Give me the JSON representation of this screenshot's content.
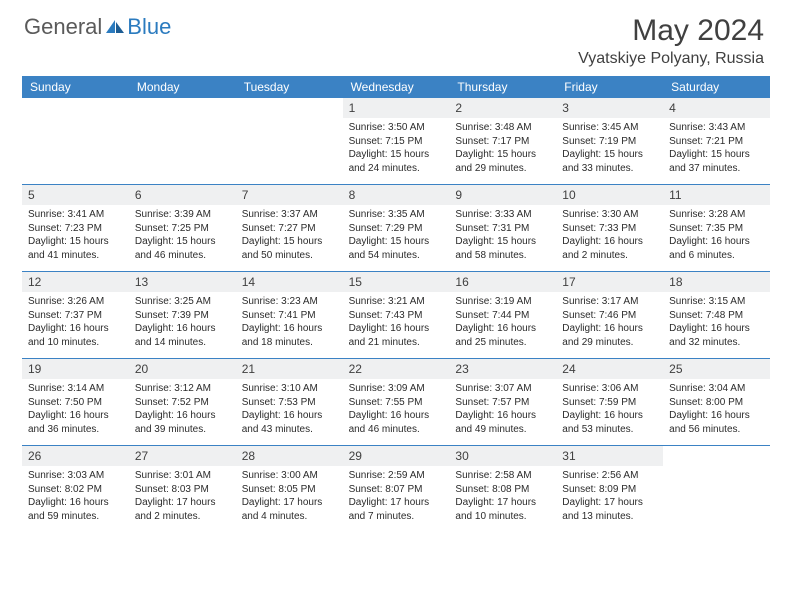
{
  "brand": {
    "part1": "General",
    "part2": "Blue"
  },
  "title": "May 2024",
  "location": "Vyatskiye Polyany, Russia",
  "colors": {
    "header_bar": "#3b82c4",
    "daynum_bg": "#eff0f1",
    "text": "#404040",
    "brand_gray": "#5a5a5a",
    "brand_blue": "#2b7bbf"
  },
  "dow": [
    "Sunday",
    "Monday",
    "Tuesday",
    "Wednesday",
    "Thursday",
    "Friday",
    "Saturday"
  ],
  "weeks": [
    [
      {
        "n": "",
        "sr": "",
        "ss": "",
        "dl": "",
        "empty": true
      },
      {
        "n": "",
        "sr": "",
        "ss": "",
        "dl": "",
        "empty": true
      },
      {
        "n": "",
        "sr": "",
        "ss": "",
        "dl": "",
        "empty": true
      },
      {
        "n": "1",
        "sr": "Sunrise: 3:50 AM",
        "ss": "Sunset: 7:15 PM",
        "dl": "Daylight: 15 hours and 24 minutes."
      },
      {
        "n": "2",
        "sr": "Sunrise: 3:48 AM",
        "ss": "Sunset: 7:17 PM",
        "dl": "Daylight: 15 hours and 29 minutes."
      },
      {
        "n": "3",
        "sr": "Sunrise: 3:45 AM",
        "ss": "Sunset: 7:19 PM",
        "dl": "Daylight: 15 hours and 33 minutes."
      },
      {
        "n": "4",
        "sr": "Sunrise: 3:43 AM",
        "ss": "Sunset: 7:21 PM",
        "dl": "Daylight: 15 hours and 37 minutes."
      }
    ],
    [
      {
        "n": "5",
        "sr": "Sunrise: 3:41 AM",
        "ss": "Sunset: 7:23 PM",
        "dl": "Daylight: 15 hours and 41 minutes."
      },
      {
        "n": "6",
        "sr": "Sunrise: 3:39 AM",
        "ss": "Sunset: 7:25 PM",
        "dl": "Daylight: 15 hours and 46 minutes."
      },
      {
        "n": "7",
        "sr": "Sunrise: 3:37 AM",
        "ss": "Sunset: 7:27 PM",
        "dl": "Daylight: 15 hours and 50 minutes."
      },
      {
        "n": "8",
        "sr": "Sunrise: 3:35 AM",
        "ss": "Sunset: 7:29 PM",
        "dl": "Daylight: 15 hours and 54 minutes."
      },
      {
        "n": "9",
        "sr": "Sunrise: 3:33 AM",
        "ss": "Sunset: 7:31 PM",
        "dl": "Daylight: 15 hours and 58 minutes."
      },
      {
        "n": "10",
        "sr": "Sunrise: 3:30 AM",
        "ss": "Sunset: 7:33 PM",
        "dl": "Daylight: 16 hours and 2 minutes."
      },
      {
        "n": "11",
        "sr": "Sunrise: 3:28 AM",
        "ss": "Sunset: 7:35 PM",
        "dl": "Daylight: 16 hours and 6 minutes."
      }
    ],
    [
      {
        "n": "12",
        "sr": "Sunrise: 3:26 AM",
        "ss": "Sunset: 7:37 PM",
        "dl": "Daylight: 16 hours and 10 minutes."
      },
      {
        "n": "13",
        "sr": "Sunrise: 3:25 AM",
        "ss": "Sunset: 7:39 PM",
        "dl": "Daylight: 16 hours and 14 minutes."
      },
      {
        "n": "14",
        "sr": "Sunrise: 3:23 AM",
        "ss": "Sunset: 7:41 PM",
        "dl": "Daylight: 16 hours and 18 minutes."
      },
      {
        "n": "15",
        "sr": "Sunrise: 3:21 AM",
        "ss": "Sunset: 7:43 PM",
        "dl": "Daylight: 16 hours and 21 minutes."
      },
      {
        "n": "16",
        "sr": "Sunrise: 3:19 AM",
        "ss": "Sunset: 7:44 PM",
        "dl": "Daylight: 16 hours and 25 minutes."
      },
      {
        "n": "17",
        "sr": "Sunrise: 3:17 AM",
        "ss": "Sunset: 7:46 PM",
        "dl": "Daylight: 16 hours and 29 minutes."
      },
      {
        "n": "18",
        "sr": "Sunrise: 3:15 AM",
        "ss": "Sunset: 7:48 PM",
        "dl": "Daylight: 16 hours and 32 minutes."
      }
    ],
    [
      {
        "n": "19",
        "sr": "Sunrise: 3:14 AM",
        "ss": "Sunset: 7:50 PM",
        "dl": "Daylight: 16 hours and 36 minutes."
      },
      {
        "n": "20",
        "sr": "Sunrise: 3:12 AM",
        "ss": "Sunset: 7:52 PM",
        "dl": "Daylight: 16 hours and 39 minutes."
      },
      {
        "n": "21",
        "sr": "Sunrise: 3:10 AM",
        "ss": "Sunset: 7:53 PM",
        "dl": "Daylight: 16 hours and 43 minutes."
      },
      {
        "n": "22",
        "sr": "Sunrise: 3:09 AM",
        "ss": "Sunset: 7:55 PM",
        "dl": "Daylight: 16 hours and 46 minutes."
      },
      {
        "n": "23",
        "sr": "Sunrise: 3:07 AM",
        "ss": "Sunset: 7:57 PM",
        "dl": "Daylight: 16 hours and 49 minutes."
      },
      {
        "n": "24",
        "sr": "Sunrise: 3:06 AM",
        "ss": "Sunset: 7:59 PM",
        "dl": "Daylight: 16 hours and 53 minutes."
      },
      {
        "n": "25",
        "sr": "Sunrise: 3:04 AM",
        "ss": "Sunset: 8:00 PM",
        "dl": "Daylight: 16 hours and 56 minutes."
      }
    ],
    [
      {
        "n": "26",
        "sr": "Sunrise: 3:03 AM",
        "ss": "Sunset: 8:02 PM",
        "dl": "Daylight: 16 hours and 59 minutes."
      },
      {
        "n": "27",
        "sr": "Sunrise: 3:01 AM",
        "ss": "Sunset: 8:03 PM",
        "dl": "Daylight: 17 hours and 2 minutes."
      },
      {
        "n": "28",
        "sr": "Sunrise: 3:00 AM",
        "ss": "Sunset: 8:05 PM",
        "dl": "Daylight: 17 hours and 4 minutes."
      },
      {
        "n": "29",
        "sr": "Sunrise: 2:59 AM",
        "ss": "Sunset: 8:07 PM",
        "dl": "Daylight: 17 hours and 7 minutes."
      },
      {
        "n": "30",
        "sr": "Sunrise: 2:58 AM",
        "ss": "Sunset: 8:08 PM",
        "dl": "Daylight: 17 hours and 10 minutes."
      },
      {
        "n": "31",
        "sr": "Sunrise: 2:56 AM",
        "ss": "Sunset: 8:09 PM",
        "dl": "Daylight: 17 hours and 13 minutes."
      },
      {
        "n": "",
        "sr": "",
        "ss": "",
        "dl": "",
        "empty": true
      }
    ]
  ]
}
